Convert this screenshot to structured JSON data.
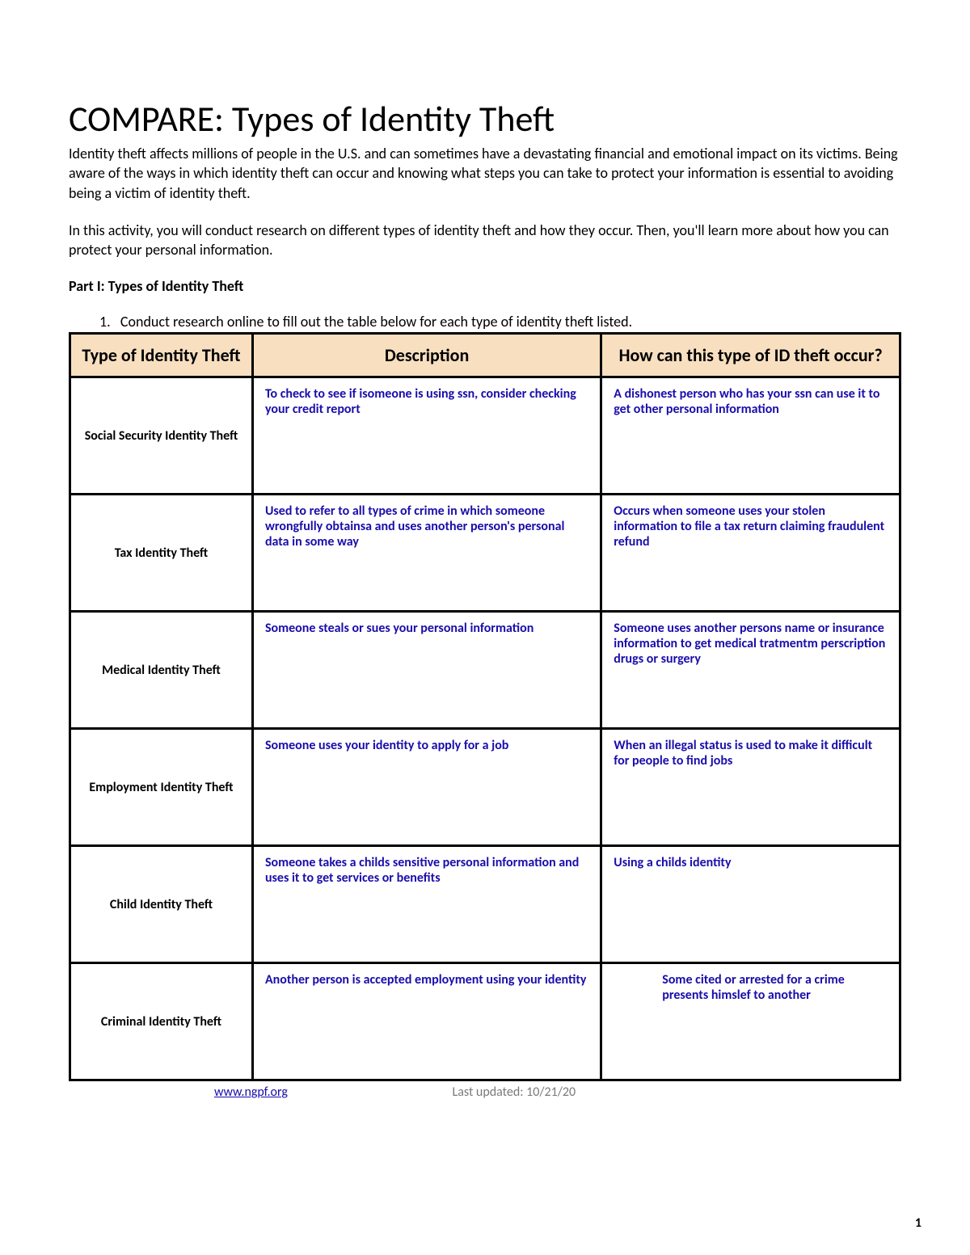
{
  "title": "COMPARE: Types of Identity Theft",
  "intro1": "Identity theft affects millions of people in the U.S. and can sometimes have a devastating financial and emotional impact on its victims. Being aware of the ways in which identity theft can occur and knowing what steps you can take to protect your information is essential to avoiding being a victim of identity theft.",
  "intro2": "In this activity, you will conduct research on different types of identity theft and how they occur. Then, you'll learn more about how you can protect your personal information.",
  "part_heading": "Part I: Types of Identity Theft",
  "instruction_number": "1.",
  "instruction_text": "Conduct research online to fill out the table below for each type of identity theft listed.",
  "table": {
    "headers": {
      "type": "Type of Identity Theft",
      "description": "Description",
      "how": "How can this type of ID theft occur?"
    },
    "header_bg": "#f8dfc0",
    "border_color": "#000000",
    "answer_color": "#1a0dab",
    "rows": [
      {
        "type": "Social Security Identity Theft",
        "description": "To check to see if isomeone is using ssn, consider checking your credit report",
        "how": "A dishonest person who has your ssn can use it to get other personal information"
      },
      {
        "type": "Tax Identity Theft",
        "description": "Used to refer to all types of crime in which someone wrongfully obtainsa and uses another person's personal data in some way",
        "how": "Occurs when someone uses your stolen information to file a tax return claiming fraudulent refund"
      },
      {
        "type": "Medical Identity Theft",
        "description": "Someone steals or sues your personal information",
        "how": "Someone uses another persons name or insurance information to get medical tratmentm perscription drugs or surgery"
      },
      {
        "type": "Employment Identity Theft",
        "description": "Someone uses your identity to apply for a job",
        "how": "When an illegal status is used to make it difficult for people to find jobs"
      },
      {
        "type": "Child Identity Theft",
        "description": "Someone takes a childs sensitive personal information and uses it to get services or benefits",
        "how": "Using a childs identity"
      },
      {
        "type": "Criminal Identity Theft",
        "description": "Another person is accepted employment using your identity",
        "how": "Some cited or arrested for a crime presents himslef to another",
        "how_inset": true
      }
    ]
  },
  "footer": {
    "link_text": "www.ngpf.org",
    "updated": "Last updated: 10/21/20"
  },
  "page_number": "1"
}
